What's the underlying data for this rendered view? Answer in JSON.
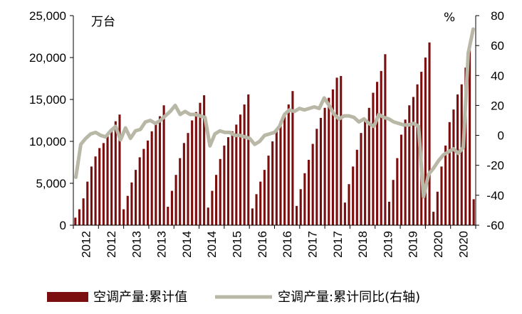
{
  "chart_data": {
    "type": "bar",
    "left_unit": "万台",
    "right_unit": "%",
    "left_ticks": [
      "0",
      "5,000",
      "10,000",
      "15,000",
      "20,000",
      "25,000"
    ],
    "left_tick_values": [
      0,
      5000,
      10000,
      15000,
      20000,
      25000
    ],
    "right_ticks": [
      "-60",
      "-40",
      "-20",
      "0",
      "20",
      "40",
      "60",
      "80"
    ],
    "right_tick_values": [
      -60,
      -40,
      -20,
      0,
      20,
      40,
      60,
      80
    ],
    "ylim_left": [
      0,
      25000
    ],
    "ylim_right": [
      -60,
      80
    ],
    "x_labels": [
      "2012",
      "2012",
      "2013",
      "2013",
      "2014",
      "2014",
      "2015",
      "2016",
      "2016",
      "2017",
      "2017",
      "2018",
      "2019",
      "2019",
      "2020",
      "2020"
    ],
    "bar_color": "#7b0f0f",
    "line_color": "#b9b8a6",
    "series": [
      {
        "name": "空调产量:累计值",
        "axis": "left",
        "values": [
          900,
          1900,
          3200,
          5200,
          7000,
          8200,
          9200,
          9800,
          10600,
          11500,
          12400,
          13200,
          1900,
          3500,
          5100,
          6600,
          8100,
          9100,
          10100,
          11200,
          12100,
          13000,
          14300,
          2200,
          4100,
          6000,
          8000,
          9800,
          11000,
          12500,
          13500,
          14600,
          15500,
          2100,
          4100,
          6000,
          7900,
          9500,
          10500,
          11200,
          12000,
          13200,
          14400,
          15600,
          2000,
          3700,
          5200,
          6600,
          8300,
          10000,
          11200,
          12400,
          13400,
          14400,
          16000,
          2300,
          4300,
          6200,
          7800,
          9700,
          11500,
          12800,
          14000,
          15200,
          16200,
          17600,
          17800,
          2700,
          4900,
          7000,
          9000,
          11000,
          12500,
          14000,
          15800,
          17100,
          18400,
          20400,
          2800,
          5400,
          8000,
          10800,
          12600,
          14300,
          15300,
          16800,
          18300,
          20000,
          21800,
          1600,
          4000,
          7000,
          9500,
          12300,
          13800,
          15600,
          16800,
          18800,
          21000,
          3100
        ]
      },
      {
        "name": "空调产量:累计同比(右轴)",
        "axis": "right",
        "values": [
          -28,
          -6,
          -2,
          1,
          2,
          0,
          -1,
          3,
          6,
          -3,
          5,
          -2,
          3,
          4,
          9,
          10,
          8,
          10,
          13,
          16,
          20,
          14,
          16,
          14,
          14,
          13,
          12,
          -7,
          1,
          3,
          2,
          2,
          0,
          0,
          -1,
          -2,
          -6,
          -4,
          0,
          1,
          2,
          6,
          14,
          17,
          16,
          18,
          17,
          18,
          19,
          18,
          25,
          20,
          14,
          11,
          13,
          13,
          12,
          9,
          11,
          8,
          6,
          14,
          12,
          11,
          9,
          8,
          7,
          7,
          8,
          6,
          -41,
          -26,
          -22,
          -17,
          -13,
          -11,
          -9,
          -12,
          -8,
          55,
          71
        ]
      }
    ]
  },
  "legend": {
    "bar_label": "空调产量:累计值",
    "line_label": "空调产量:累计同比(右轴)"
  }
}
